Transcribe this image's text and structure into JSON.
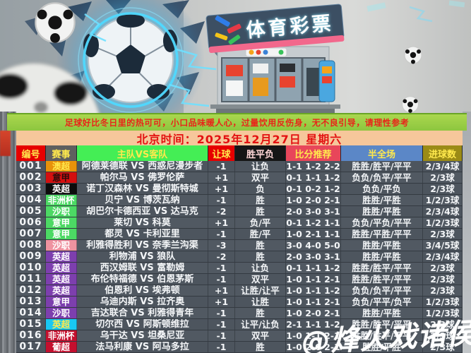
{
  "banner": {
    "sign_text": "体育彩票",
    "alt": "soccer ball bursting through wall with electric energy beside sports-lottery storefront"
  },
  "notice": {
    "text": "足球好比冬日里的热可可，小口品味暖人心，过量饮用反伤身，无不良引导，请理性参考"
  },
  "date_bar": {
    "text": "北京时间：2025年12月27日 星期六"
  },
  "table": {
    "headers": [
      "编号",
      "赛事",
      "主队VS客队",
      "让球",
      "胜平负",
      "比分推荐",
      "半全场",
      "进球数"
    ],
    "rows": [
      {
        "num": "001",
        "league": "澳超",
        "league_color": "orange",
        "match": "阿德莱德联 VS 西惑尼漫步者",
        "handicap": "-1",
        "wdl": "让负",
        "score": "1-1 1-2 2-2",
        "half_full": "胜胜/胜平/平平",
        "goals": "2/3/4球"
      },
      {
        "num": "002",
        "league": "意甲",
        "league_color": "redblack",
        "match": "帕尔马 VS 佛罗伦萨",
        "handicap": "+1",
        "wdl": "双平",
        "score": "0-1 1-1 1-2",
        "half_full": "负负/负平/平平",
        "goals": "2/3球"
      },
      {
        "num": "003",
        "league": "英超",
        "league_color": "black",
        "match": "诺丁汉森林 VS 曼彻斯特城",
        "handicap": "+1",
        "wdl": "负",
        "score": "0-1 0-2 1-2",
        "half_full": "负负/平负",
        "goals": "2/3球"
      },
      {
        "num": "004",
        "league": "非洲杯",
        "league_color": "green",
        "match": "贝宁 VS 博茨瓦纳",
        "handicap": "-1",
        "wdl": "胜",
        "score": "1-0 2-0 2-1",
        "half_full": "胜胜/平胜",
        "goals": "1/2/3球"
      },
      {
        "num": "005",
        "league": "沙职",
        "league_color": "green",
        "match": "胡巴尔卡德西亚 VS 达马克",
        "handicap": "-2",
        "wdl": "胜",
        "score": "2-0 3-0 3-1",
        "half_full": "胜胜/平胜",
        "goals": "2/3/4球"
      },
      {
        "num": "006",
        "league": "意甲",
        "league_color": "green",
        "match": "莱切 VS 科莫",
        "handicap": "+1",
        "wdl": "负/平",
        "score": "0-1 1-2 1-1",
        "half_full": "负负/平负/平平",
        "goals": "1/2/3球"
      },
      {
        "num": "007",
        "league": "意甲",
        "league_color": "green",
        "match": "都灵 VS 卡利亚里",
        "handicap": "-1",
        "wdl": "胜/平",
        "score": "1-0 2-1 1-1",
        "half_full": "胜胜/平胜/平平",
        "goals": "2/3球"
      },
      {
        "num": "008",
        "league": "沙职",
        "league_color": "pink",
        "match": "利雅得胜利 VS 奈季兰沟渠",
        "handicap": "-3",
        "wdl": "胜",
        "score": "3-0 4-0 5-0",
        "half_full": "胜胜/平胜",
        "goals": "3/4/5球"
      },
      {
        "num": "009",
        "league": "英超",
        "league_color": "purple",
        "match": "利物浦 VS 狼队",
        "handicap": "-2",
        "wdl": "胜",
        "score": "2-0 3-0 3-1",
        "half_full": "胜胜/平胜",
        "goals": "2/3/4球"
      },
      {
        "num": "010",
        "league": "英超",
        "league_color": "purple",
        "match": "西汉姆联 VS 富勒姆",
        "handicap": "-1",
        "wdl": "让负",
        "score": "0-1 1-1 1-2",
        "half_full": "胜胜/胜平/平平",
        "goals": "2/3球"
      },
      {
        "num": "011",
        "league": "英超",
        "league_color": "purple",
        "match": "布伦特福德 VS 伯恩茅斯",
        "handicap": "-1",
        "wdl": "双平",
        "score": "1-0 1-1 2-1",
        "half_full": "胜胜/胜平/平平",
        "goals": "2/3球"
      },
      {
        "num": "012",
        "league": "英超",
        "league_color": "purple",
        "match": "伯恩利 VS 埃弗顿",
        "handicap": "+1",
        "wdl": "让胜/让平",
        "score": "1-0 1-1 1-2",
        "half_full": "负负/负平/平平",
        "goals": "2/3球"
      },
      {
        "num": "013",
        "league": "意甲",
        "league_color": "purple",
        "match": "乌迪内斯 VS 拉齐奥",
        "handicap": "+1",
        "wdl": "让胜",
        "score": "1-0 1-1 2-1",
        "half_full": "负负/平平/负平",
        "goals": "1/2/3球"
      },
      {
        "num": "014",
        "league": "沙职",
        "league_color": "purple",
        "match": "吉达联合 VS 利雅得青年",
        "handicap": "-1",
        "wdl": "胜",
        "score": "1-0 2-0 2-1",
        "half_full": "胜胜/平胜",
        "goals": "1/2/3球"
      },
      {
        "num": "015",
        "league": "英超",
        "league_color": "cyan",
        "match": "切尔西 VS 阿斯顿维拉",
        "handicap": "-1",
        "wdl": "让平/让负",
        "score": "2-1 1-1 1-2",
        "half_full": "胜胜/胜平/平平",
        "goals": "2/3球"
      },
      {
        "num": "016",
        "league": "非洲杯",
        "league_color": "crimson",
        "match": "乌干达 VS 坦桑尼亚",
        "handicap": "-1",
        "wdl": "双平",
        "score": "1-0 1-1 2-1",
        "half_full": "胜胜/胜平/平平",
        "goals": "2/3球"
      },
      {
        "num": "017",
        "league": "葡超",
        "league_color": "crimson",
        "match": "法马利康 VS 阿马多拉",
        "handicap": "-1",
        "wdl": "胜",
        "score": "1-0 2-0 2-1",
        "half_full": "胜胜/平胜",
        "goals": "2/3球"
      }
    ]
  },
  "watermark": {
    "text": "@烽火戏诸侯"
  },
  "colors": {
    "notice_bg": "#8dc63f",
    "notice_text": "#e8251a",
    "date_bg": "#f6c79b",
    "date_text": "#e31111",
    "row_bg": "#4d555e",
    "header_yellow": "#ffe94d",
    "electric_blue": "#4fd9ff",
    "sign_pink": "#f2688c"
  }
}
